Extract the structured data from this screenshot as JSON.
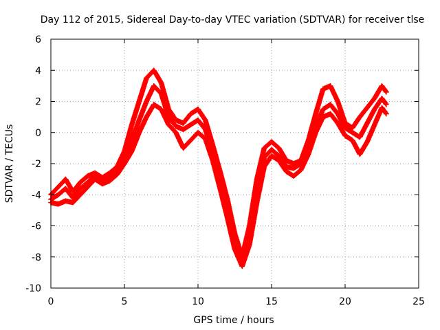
{
  "chart_data": {
    "type": "scatter",
    "title": "Day 112 of 2015, Sidereal Day-to-day VTEC variation (SDTVAR) for receiver tlse",
    "xlabel": "GPS time / hours",
    "ylabel": "SDTVAR / TECUs",
    "xlim": [
      0,
      25
    ],
    "ylim": [
      -10,
      6
    ],
    "xticks": [
      0,
      5,
      10,
      15,
      20,
      25
    ],
    "yticks": [
      -10,
      -8,
      -6,
      -4,
      -2,
      0,
      2,
      4,
      6
    ],
    "xtick_labels": [
      "0",
      "5",
      "10",
      "15",
      "20",
      "25"
    ],
    "ytick_labels": [
      "-10",
      "-8",
      "-6",
      "-4",
      "-2",
      "0",
      "2",
      "4",
      "6"
    ],
    "grid": true,
    "marker": "+",
    "color": "#ff0000",
    "series": [
      {
        "x": [
          0.0,
          0.5,
          1.0,
          1.5,
          2.0,
          2.5,
          3.0,
          3.5,
          4.0,
          4.5,
          5.0,
          5.5,
          6.0,
          6.5,
          7.0,
          7.5,
          8.0,
          8.5,
          9.0,
          9.5,
          10.0,
          10.5,
          11.0,
          11.5,
          12.0,
          12.5,
          13.0,
          13.5,
          14.0,
          14.5,
          15.0,
          15.5,
          16.0,
          16.5,
          17.0,
          17.5,
          18.0,
          18.5,
          19.0,
          19.5,
          20.0,
          20.5,
          21.0,
          21.5,
          22.0,
          22.5,
          22.8
        ],
        "y": [
          -4.0,
          -3.5,
          -3.0,
          -3.8,
          -3.2,
          -2.8,
          -2.6,
          -2.9,
          -2.6,
          -2.2,
          -1.2,
          0.5,
          2.0,
          3.5,
          4.0,
          3.2,
          1.5,
          0.8,
          0.6,
          1.2,
          1.5,
          0.8,
          -0.8,
          -2.5,
          -4.3,
          -6.5,
          -8.0,
          -6.0,
          -3.0,
          -1.0,
          -0.6,
          -1.0,
          -1.8,
          -2.0,
          -1.8,
          -0.5,
          1.2,
          2.8,
          3.0,
          2.0,
          0.6,
          0.3,
          1.0,
          1.6,
          2.2,
          3.0,
          2.6
        ]
      },
      {
        "x": [
          0.0,
          0.5,
          1.0,
          1.5,
          2.0,
          2.5,
          3.0,
          3.5,
          4.0,
          4.5,
          5.0,
          5.5,
          6.0,
          6.5,
          7.0,
          7.5,
          8.0,
          8.5,
          9.0,
          9.5,
          10.0,
          10.5,
          11.0,
          11.5,
          12.0,
          12.5,
          13.0,
          13.5,
          14.0,
          14.5,
          15.0,
          15.5,
          16.0,
          16.5,
          17.0,
          17.5,
          18.0,
          18.5,
          19.0,
          19.5,
          20.0,
          20.5,
          21.0,
          21.5,
          22.0,
          22.5,
          22.8
        ],
        "y": [
          -4.3,
          -4.0,
          -3.6,
          -4.2,
          -3.6,
          -3.2,
          -2.8,
          -3.2,
          -2.9,
          -2.5,
          -1.6,
          -0.5,
          0.8,
          2.0,
          3.0,
          2.5,
          1.0,
          0.4,
          0.2,
          0.5,
          0.8,
          0.2,
          -1.3,
          -3.0,
          -5.0,
          -7.0,
          -8.3,
          -6.8,
          -3.8,
          -1.6,
          -1.1,
          -1.5,
          -2.2,
          -2.3,
          -2.0,
          -0.9,
          0.4,
          1.5,
          1.8,
          1.2,
          0.3,
          0.0,
          -0.3,
          0.6,
          1.5,
          2.2,
          1.8
        ]
      },
      {
        "x": [
          0.0,
          0.5,
          1.0,
          1.5,
          2.0,
          2.5,
          3.0,
          3.5,
          4.0,
          4.5,
          5.0,
          5.5,
          6.0,
          6.5,
          7.0,
          7.5,
          8.0,
          8.5,
          9.0,
          9.5,
          10.0,
          10.5,
          11.0,
          11.5,
          12.0,
          12.5,
          13.0,
          13.5,
          14.0,
          14.5,
          15.0,
          15.5,
          16.0,
          16.5,
          17.0,
          17.5,
          18.0,
          18.5,
          19.0,
          19.5,
          20.0,
          20.5,
          21.0,
          21.5,
          22.0,
          22.5,
          22.8
        ],
        "y": [
          -4.5,
          -4.6,
          -4.4,
          -4.5,
          -4.0,
          -3.5,
          -3.0,
          -3.3,
          -3.1,
          -2.7,
          -2.0,
          -1.2,
          0.0,
          1.0,
          1.8,
          1.5,
          0.5,
          0.0,
          -1.0,
          -0.5,
          0.0,
          -0.4,
          -1.8,
          -3.6,
          -5.5,
          -7.5,
          -8.6,
          -7.2,
          -4.5,
          -2.2,
          -1.5,
          -1.8,
          -2.5,
          -2.8,
          -2.4,
          -1.4,
          0.0,
          1.0,
          1.2,
          0.6,
          -0.2,
          -0.5,
          -1.4,
          -0.6,
          0.5,
          1.6,
          1.2
        ]
      }
    ]
  }
}
